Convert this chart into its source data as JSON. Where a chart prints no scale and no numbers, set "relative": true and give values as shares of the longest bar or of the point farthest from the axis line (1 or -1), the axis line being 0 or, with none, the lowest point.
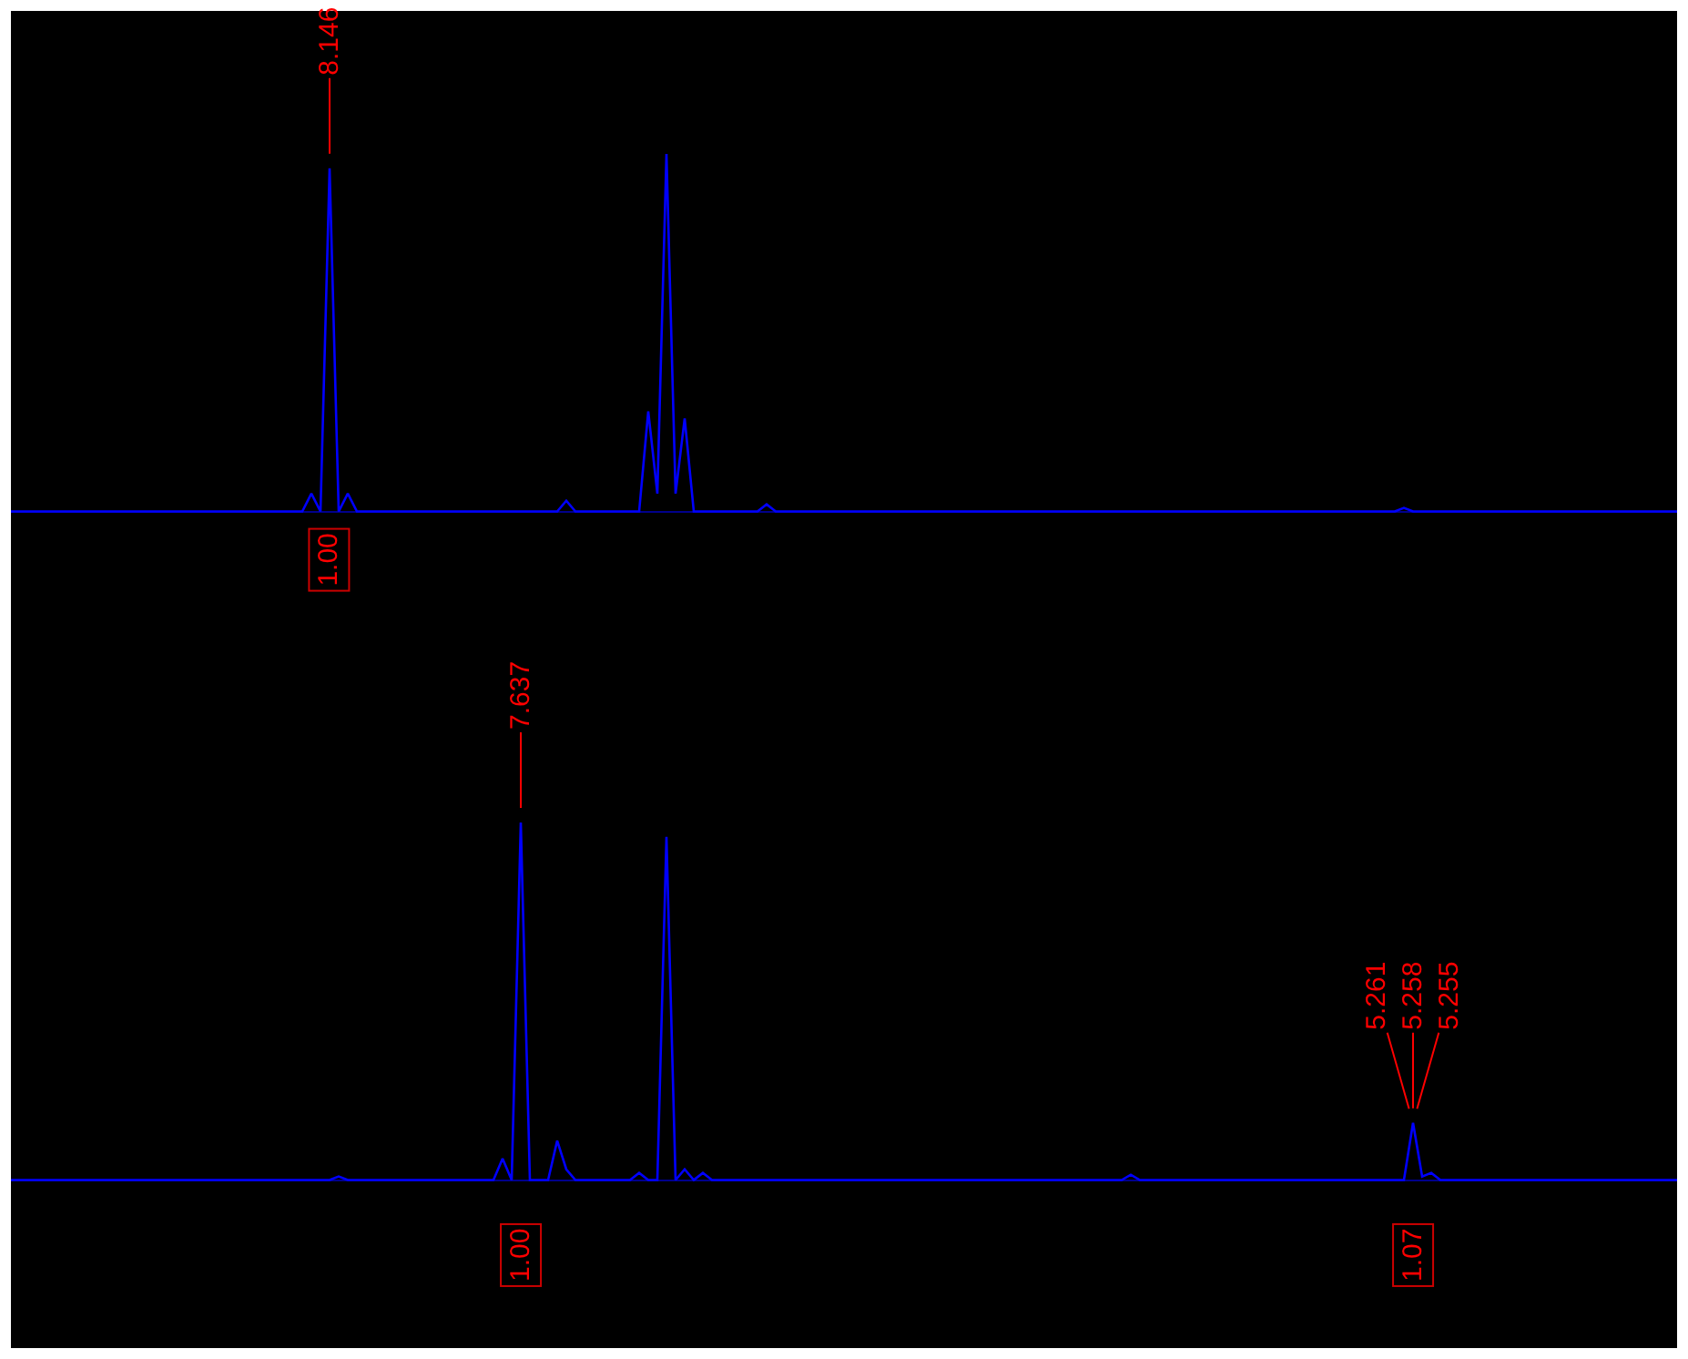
{
  "chart_data": [
    {
      "type": "line",
      "relative": true,
      "categories": [
        null,
        null,
        null,
        null,
        null,
        null,
        null,
        null,
        null,
        null,
        null,
        null,
        null,
        null,
        null,
        null,
        null,
        null,
        null,
        null,
        null,
        null,
        null,
        null,
        null,
        null,
        null,
        null,
        null,
        null,
        null,
        null,
        null,
        null,
        null,
        null,
        null,
        null,
        null,
        null,
        null,
        null,
        null,
        null,
        null,
        null,
        null,
        null,
        null,
        null,
        null,
        null,
        null,
        null,
        null,
        null,
        null,
        null,
        null,
        null,
        null,
        null,
        null,
        null,
        null,
        null,
        null,
        null,
        null,
        null,
        null,
        null,
        null,
        null,
        null,
        null,
        null,
        null,
        null,
        null,
        null,
        null,
        null,
        null,
        null,
        null,
        null,
        null,
        null,
        null,
        null,
        null,
        null,
        null,
        null,
        null,
        null,
        null,
        null,
        null,
        null,
        null,
        null,
        null,
        null,
        null,
        null,
        null,
        null,
        null,
        null,
        null,
        null,
        null,
        null,
        null,
        null,
        null,
        null,
        null,
        null,
        null,
        null,
        null,
        null,
        null,
        null,
        null,
        null,
        null,
        null,
        null,
        null,
        null,
        null,
        null,
        null,
        null,
        null,
        null,
        null,
        null,
        null,
        null,
        null,
        null,
        null,
        null,
        null,
        null,
        null,
        null,
        null,
        null,
        null,
        null,
        null,
        null,
        null,
        null,
        null,
        null,
        null,
        null,
        null,
        null,
        null,
        null,
        null,
        null,
        null,
        null,
        null,
        null,
        null,
        null,
        null,
        null,
        null,
        null,
        null,
        null,
        null,
        null
      ],
      "series": [
        {
          "color": "#0000ff",
          "values": [
            0,
            0,
            0,
            0,
            0,
            0,
            0,
            0,
            0,
            0,
            0,
            0,
            0,
            0,
            0,
            0,
            0,
            0,
            0,
            0,
            0,
            0,
            0,
            0,
            0,
            0,
            0,
            0,
            0,
            0,
            0,
            0,
            0,
            0.05,
            0,
            0.96,
            0,
            0.05,
            0,
            0,
            0,
            0,
            0,
            0,
            0,
            0,
            0,
            0,
            0,
            0,
            0,
            0,
            0,
            0,
            0,
            0,
            0,
            0,
            0,
            0,
            0,
            0.03,
            0,
            0,
            0,
            0,
            0,
            0,
            0,
            0,
            0.28,
            0.05,
            1,
            0.05,
            0.26,
            0,
            0,
            0,
            0,
            0,
            0,
            0,
            0,
            0.02,
            0,
            0,
            0,
            0,
            0,
            0,
            0,
            0,
            0,
            0,
            0,
            0,
            0,
            0,
            0,
            0,
            0,
            0,
            0,
            0,
            0,
            0,
            0,
            0,
            0,
            0,
            0,
            0,
            0,
            0,
            0,
            0,
            0,
            0,
            0,
            0,
            0,
            0,
            0,
            0,
            0,
            0,
            0,
            0,
            0,
            0,
            0,
            0,
            0,
            0,
            0,
            0,
            0,
            0,
            0,
            0,
            0,
            0,
            0,
            0,
            0,
            0,
            0,
            0,
            0,
            0,
            0,
            0,
            0,
            0.01,
            0,
            0,
            0,
            0,
            0,
            0,
            0,
            0,
            0,
            0,
            0,
            0,
            0,
            0,
            0,
            0,
            0,
            0,
            0,
            0,
            0,
            0,
            0,
            0,
            0,
            0,
            0,
            0,
            0,
            0
          ]
        }
      ],
      "annotations": [
        {
          "text": "8.146",
          "y": 0.96
        },
        "1.00"
      ]
    },
    {
      "type": "line",
      "relative": true,
      "categories": [
        null,
        null,
        null,
        null,
        null,
        null,
        null,
        null,
        null,
        null,
        null,
        null,
        null,
        null,
        null,
        null,
        null,
        null,
        null,
        null,
        null,
        null,
        null,
        null,
        null,
        null,
        null,
        null,
        null,
        null,
        null,
        null,
        null,
        null,
        null,
        null,
        null,
        null,
        null,
        null,
        null,
        null,
        null,
        null,
        null,
        null,
        null,
        null,
        null,
        null,
        null,
        null,
        null,
        null,
        null,
        null,
        null,
        null,
        null,
        null,
        null,
        null,
        null,
        null,
        null,
        null,
        null,
        null,
        null,
        null,
        null,
        null,
        null,
        null,
        null,
        null,
        null,
        null,
        null,
        null,
        null,
        null,
        null,
        null,
        null,
        null,
        null,
        null,
        null,
        null,
        null,
        null,
        null,
        null,
        null,
        null,
        null,
        null,
        null,
        null,
        null,
        null,
        null,
        null,
        null,
        null,
        null,
        null,
        null,
        null,
        null,
        null,
        null,
        null,
        null,
        null,
        null,
        null,
        null,
        null,
        null,
        null,
        null,
        null,
        null,
        null,
        null,
        null,
        null,
        null,
        null,
        null,
        null,
        null,
        null,
        null,
        null,
        null,
        null,
        null,
        null,
        null,
        null,
        null,
        null,
        null,
        null,
        null,
        null,
        null,
        null,
        null,
        null,
        null,
        null,
        null,
        null,
        null,
        null,
        null,
        null,
        null,
        null,
        null,
        null,
        null,
        null,
        null,
        null,
        null,
        null,
        null,
        null,
        null,
        null,
        null,
        null,
        null,
        null,
        null,
        null,
        null,
        null,
        null
      ],
      "series": [
        {
          "color": "#0000ff",
          "values": [
            0,
            0,
            0,
            0,
            0,
            0,
            0,
            0,
            0,
            0,
            0,
            0,
            0,
            0,
            0,
            0,
            0,
            0,
            0,
            0,
            0,
            0,
            0,
            0,
            0,
            0,
            0,
            0,
            0,
            0,
            0,
            0,
            0,
            0,
            0,
            0,
            0.01,
            0,
            0,
            0,
            0,
            0,
            0,
            0,
            0,
            0,
            0,
            0,
            0,
            0,
            0,
            0,
            0,
            0,
            0.06,
            0,
            1,
            0,
            0,
            0,
            0.11,
            0.03,
            0,
            0,
            0,
            0,
            0,
            0,
            0,
            0.02,
            0,
            0,
            0.96,
            0,
            0.03,
            0,
            0.02,
            0,
            0,
            0,
            0,
            0,
            0,
            0,
            0,
            0,
            0,
            0,
            0,
            0,
            0,
            0,
            0,
            0,
            0,
            0,
            0,
            0,
            0,
            0,
            0,
            0,
            0,
            0,
            0,
            0,
            0,
            0,
            0,
            0,
            0,
            0,
            0,
            0,
            0,
            0,
            0,
            0,
            0,
            0,
            0,
            0,
            0,
            0.015,
            0,
            0,
            0,
            0,
            0,
            0,
            0,
            0,
            0,
            0,
            0,
            0,
            0,
            0,
            0,
            0,
            0,
            0,
            0,
            0,
            0,
            0,
            0,
            0,
            0,
            0,
            0,
            0,
            0,
            0,
            0.16,
            0.01,
            0.02,
            0,
            0,
            0,
            0,
            0,
            0,
            0,
            0,
            0,
            0,
            0,
            0,
            0,
            0,
            0,
            0,
            0,
            0,
            0,
            0,
            0,
            0,
            0,
            0,
            0,
            0,
            0
          ]
        }
      ],
      "annotations": [
        {
          "text": "7.637",
          "y": 1
        },
        {
          "text": "5.258",
          "y": 0.16
        },
        "1.00",
        "1.07",
        "5.261",
        "5.255"
      ]
    }
  ]
}
